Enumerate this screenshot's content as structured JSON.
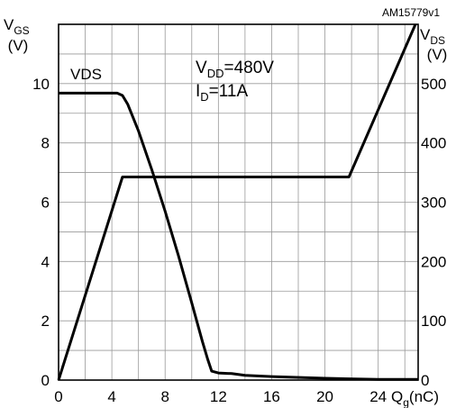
{
  "chart_data": {
    "type": "line",
    "code": "AM15779v1",
    "x_axis": {
      "label_main": "Q",
      "label_sub": "g",
      "label_unit": "(nC)",
      "range": [
        0,
        27
      ],
      "ticks": [
        0,
        4,
        8,
        12,
        16,
        20,
        24
      ],
      "grid_step": 2
    },
    "y_left": {
      "label_main": "V",
      "label_sub": "GS",
      "unit": "(V)",
      "range": [
        0,
        12
      ],
      "ticks": [
        0,
        2,
        4,
        6,
        8,
        10
      ],
      "grid_step": 1
    },
    "y_right": {
      "label_main": "V",
      "label_sub": "DS",
      "unit": "(V)",
      "range": [
        0,
        600
      ],
      "ticks": [
        0,
        100,
        200,
        300,
        400,
        500
      ]
    },
    "conditions": {
      "vdd_main": "V",
      "vdd_sub": "DD",
      "vdd_value": "=480V",
      "id_main": "I",
      "id_sub": "D",
      "id_value": "=11A"
    },
    "series_label": "VDS",
    "series": [
      {
        "name": "VGS",
        "axis": "left",
        "x": [
          0,
          4.8,
          21.8,
          26.8
        ],
        "y": [
          0,
          6.85,
          6.85,
          12
        ]
      },
      {
        "name": "VDS",
        "axis": "right",
        "x": [
          0,
          4.4,
          4.8,
          5.2,
          6,
          7,
          8,
          9,
          10,
          10.8,
          11.2,
          11.5,
          12,
          13,
          14,
          16,
          20,
          24,
          27
        ],
        "y": [
          484,
          484,
          480,
          465,
          420,
          355,
          285,
          210,
          130,
          65,
          35,
          15,
          12,
          11,
          8,
          6,
          3,
          1,
          1
        ]
      }
    ],
    "grid": true,
    "legend": "none"
  }
}
